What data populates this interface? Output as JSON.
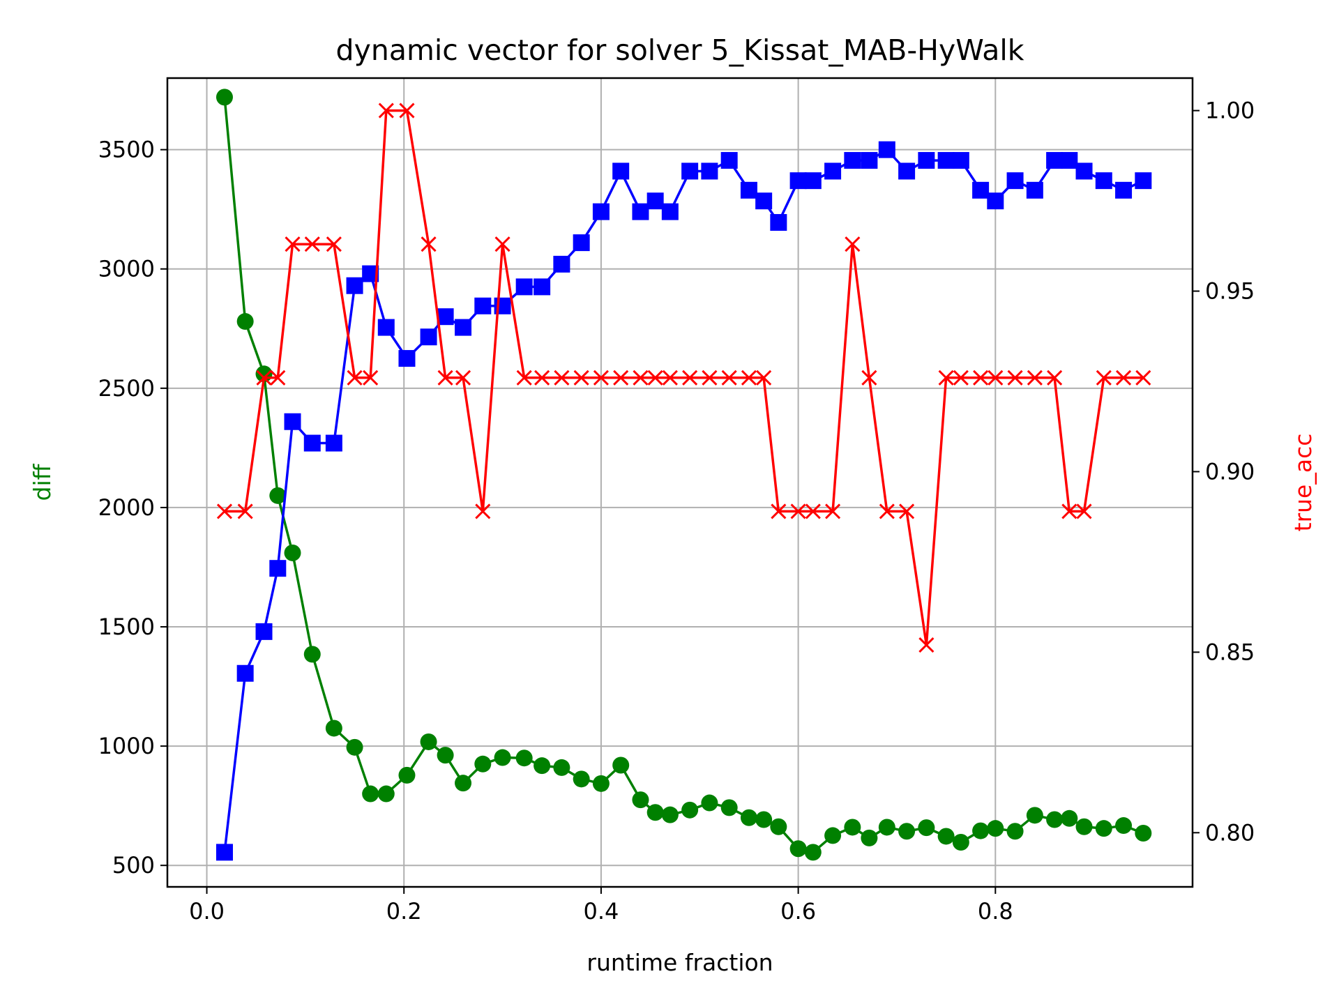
{
  "chart_data": {
    "type": "line",
    "title": "dynamic vector for solver 5_Kissat_MAB-HyWalk",
    "xlabel": "runtime fraction",
    "ylabel_left": "diff",
    "ylabel_right": "true_acc",
    "xlim": [
      -0.04,
      1.0
    ],
    "ylim_left": [
      410,
      3800
    ],
    "ylim_right": [
      0.785,
      1.009
    ],
    "x_ticks": [
      0.0,
      0.2,
      0.4,
      0.6,
      0.8
    ],
    "x_tick_labels": [
      "0.0",
      "0.2",
      "0.4",
      "0.6",
      "0.8"
    ],
    "y_left_ticks": [
      500,
      1000,
      1500,
      2000,
      2500,
      3000,
      3500
    ],
    "y_left_tick_labels": [
      "500",
      "1000",
      "1500",
      "2000",
      "2500",
      "3000",
      "3500"
    ],
    "y_right_ticks": [
      0.8,
      0.85,
      0.9,
      0.95,
      1.0
    ],
    "y_right_tick_labels": [
      "0.80",
      "0.85",
      "0.90",
      "0.95",
      "1.00"
    ],
    "grid": true,
    "colors": {
      "diff": "#008000",
      "blue_series": "#0000ff",
      "true_acc": "#ff0000",
      "left_label": "#008000",
      "right_label": "#ff0000"
    },
    "x": [
      0.018,
      0.039,
      0.058,
      0.072,
      0.087,
      0.107,
      0.129,
      0.15,
      0.166,
      0.182,
      0.203,
      0.225,
      0.242,
      0.26,
      0.28,
      0.3,
      0.322,
      0.34,
      0.36,
      0.38,
      0.4,
      0.42,
      0.44,
      0.455,
      0.47,
      0.49,
      0.51,
      0.53,
      0.55,
      0.565,
      0.58,
      0.6,
      0.615,
      0.635,
      0.655,
      0.672,
      0.69,
      0.71,
      0.73,
      0.75,
      0.765,
      0.785,
      0.8,
      0.82,
      0.84,
      0.86,
      0.875,
      0.89,
      0.91,
      0.93,
      0.95
    ],
    "series": [
      {
        "key": "diff",
        "axis": "left",
        "marker": "circle",
        "values": [
          3720,
          2780,
          2560,
          2050,
          1810,
          1385,
          1075,
          995,
          800,
          800,
          878,
          1018,
          962,
          845,
          925,
          952,
          950,
          918,
          910,
          862,
          843,
          920,
          775,
          722,
          712,
          732,
          762,
          742,
          700,
          692,
          662,
          570,
          555,
          625,
          660,
          615,
          660,
          643,
          658,
          622,
          597,
          645,
          655,
          643,
          710,
          692,
          697,
          662,
          655,
          667,
          635
        ]
      },
      {
        "key": "blue_series",
        "axis": "left",
        "marker": "square",
        "values": [
          555,
          1305,
          1480,
          1745,
          2360,
          2270,
          2270,
          2930,
          2980,
          2755,
          2625,
          2715,
          2800,
          2755,
          2845,
          2845,
          2925,
          2925,
          3020,
          3110,
          3240,
          3410,
          3240,
          3285,
          3240,
          3410,
          3410,
          3455,
          3330,
          3285,
          3195,
          3370,
          3370,
          3410,
          3455,
          3455,
          3500,
          3410,
          3455,
          3455,
          3455,
          3330,
          3285,
          3370,
          3330,
          3455,
          3455,
          3410,
          3370,
          3330,
          3370
        ]
      },
      {
        "key": "true_acc",
        "axis": "right",
        "marker": "x",
        "values": [
          0.889,
          0.889,
          0.926,
          0.926,
          0.963,
          0.963,
          0.963,
          0.926,
          0.926,
          1.0,
          1.0,
          0.963,
          0.926,
          0.926,
          0.889,
          0.963,
          0.926,
          0.926,
          0.926,
          0.926,
          0.926,
          0.926,
          0.926,
          0.926,
          0.926,
          0.926,
          0.926,
          0.926,
          0.926,
          0.926,
          0.889,
          0.889,
          0.889,
          0.889,
          0.963,
          0.926,
          0.889,
          0.889,
          0.852,
          0.926,
          0.926,
          0.926,
          0.926,
          0.926,
          0.926,
          0.926,
          0.889,
          0.889,
          0.926,
          0.926,
          0.926
        ]
      }
    ]
  }
}
